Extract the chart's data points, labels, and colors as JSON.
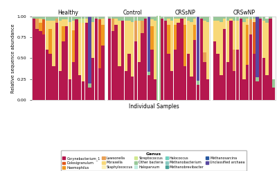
{
  "xlabel": "Individual Samples",
  "ylabel": "Relative sequence abundance",
  "groups": [
    "Healthy",
    "Control",
    "CRSsNP",
    "CRSwNP"
  ],
  "ylim": [
    0,
    1.0
  ],
  "yticks": [
    0.0,
    0.25,
    0.5,
    0.75,
    1.0
  ],
  "ytick_labels": [
    "0.00",
    "0.25",
    "0.50",
    "0.75",
    "1.00"
  ],
  "genera": [
    "Corynebacterium_1",
    "Dolosigranulum",
    "Haemophilus",
    "Lawsonella",
    "Moraxella",
    "Staphylococcus",
    "Streptococcus",
    "Other bacteria",
    "Haloparvum",
    "Halococcus",
    "Methanobacterium",
    "Methanobrevibacter",
    "Methanosarcina",
    "Unclassified archaea"
  ],
  "colors": [
    "#B5174E",
    "#E05A1E",
    "#F09820",
    "#E8A055",
    "#F8D878",
    "#FDF0B8",
    "#D0E890",
    "#98C898",
    "#C0EDE0",
    "#70D0C0",
    "#88C8C0",
    "#48A098",
    "#2858A0",
    "#5848A0"
  ],
  "background_color": "#FFFFFF",
  "panel_bg": "#FAFAF8",
  "bar_width": 0.92,
  "healthy_data": [
    [
      0.97,
      0.0,
      0.0,
      0.0,
      0.0,
      0.0,
      0.0,
      0.03,
      0.0,
      0.0,
      0.0,
      0.0,
      0.0,
      0.0
    ],
    [
      0.85,
      0.0,
      0.0,
      0.12,
      0.0,
      0.0,
      0.0,
      0.03,
      0.0,
      0.0,
      0.0,
      0.0,
      0.0,
      0.0
    ],
    [
      0.82,
      0.0,
      0.1,
      0.0,
      0.05,
      0.0,
      0.0,
      0.03,
      0.0,
      0.0,
      0.0,
      0.0,
      0.0,
      0.0
    ],
    [
      0.78,
      0.18,
      0.0,
      0.0,
      0.0,
      0.0,
      0.0,
      0.04,
      0.0,
      0.0,
      0.0,
      0.0,
      0.0,
      0.0
    ],
    [
      0.6,
      0.0,
      0.0,
      0.0,
      0.35,
      0.0,
      0.0,
      0.05,
      0.0,
      0.0,
      0.0,
      0.0,
      0.0,
      0.0
    ],
    [
      0.55,
      0.0,
      0.3,
      0.0,
      0.1,
      0.0,
      0.0,
      0.05,
      0.0,
      0.0,
      0.0,
      0.0,
      0.0,
      0.0
    ],
    [
      0.4,
      0.0,
      0.0,
      0.0,
      0.55,
      0.0,
      0.0,
      0.05,
      0.0,
      0.0,
      0.0,
      0.0,
      0.0,
      0.0
    ],
    [
      0.92,
      0.0,
      0.0,
      0.05,
      0.0,
      0.0,
      0.0,
      0.03,
      0.0,
      0.0,
      0.0,
      0.0,
      0.0,
      0.0
    ],
    [
      0.35,
      0.0,
      0.0,
      0.0,
      0.6,
      0.0,
      0.0,
      0.05,
      0.0,
      0.0,
      0.0,
      0.0,
      0.0,
      0.0
    ],
    [
      0.7,
      0.0,
      0.18,
      0.0,
      0.08,
      0.0,
      0.0,
      0.04,
      0.0,
      0.0,
      0.0,
      0.0,
      0.0,
      0.0
    ],
    [
      0.88,
      0.0,
      0.0,
      0.0,
      0.08,
      0.0,
      0.0,
      0.04,
      0.0,
      0.0,
      0.0,
      0.0,
      0.0,
      0.0
    ],
    [
      0.25,
      0.0,
      0.0,
      0.0,
      0.68,
      0.0,
      0.0,
      0.07,
      0.0,
      0.0,
      0.0,
      0.0,
      0.0,
      0.0
    ],
    [
      0.45,
      0.0,
      0.38,
      0.0,
      0.12,
      0.0,
      0.0,
      0.05,
      0.0,
      0.0,
      0.0,
      0.0,
      0.0,
      0.0
    ],
    [
      0.96,
      0.0,
      0.0,
      0.0,
      0.0,
      0.0,
      0.0,
      0.04,
      0.0,
      0.0,
      0.0,
      0.0,
      0.0,
      0.0
    ],
    [
      0.3,
      0.0,
      0.0,
      0.0,
      0.62,
      0.0,
      0.05,
      0.03,
      0.0,
      0.0,
      0.0,
      0.0,
      0.0,
      0.0
    ],
    [
      0.22,
      0.0,
      0.0,
      0.0,
      0.7,
      0.0,
      0.05,
      0.03,
      0.0,
      0.0,
      0.0,
      0.0,
      0.0,
      0.0
    ],
    [
      0.92,
      0.0,
      0.0,
      0.0,
      0.05,
      0.0,
      0.0,
      0.03,
      0.0,
      0.0,
      0.0,
      0.0,
      0.0,
      0.0
    ],
    [
      0.15,
      0.0,
      0.0,
      0.0,
      0.0,
      0.0,
      0.0,
      0.05,
      0.0,
      0.0,
      0.0,
      0.0,
      0.0,
      0.8
    ],
    [
      0.5,
      0.0,
      0.0,
      0.0,
      0.43,
      0.0,
      0.0,
      0.07,
      0.0,
      0.0,
      0.0,
      0.0,
      0.0,
      0.0
    ],
    [
      0.97,
      0.0,
      0.0,
      0.0,
      0.0,
      0.0,
      0.0,
      0.03,
      0.0,
      0.0,
      0.0,
      0.0,
      0.0,
      0.0
    ],
    [
      0.38,
      0.58,
      0.0,
      0.0,
      0.0,
      0.0,
      0.0,
      0.04,
      0.0,
      0.0,
      0.0,
      0.0,
      0.0,
      0.0
    ],
    [
      0.65,
      0.0,
      0.25,
      0.0,
      0.07,
      0.0,
      0.0,
      0.03,
      0.0,
      0.0,
      0.0,
      0.0,
      0.0,
      0.0
    ]
  ],
  "control_data": [
    [
      0.97,
      0.0,
      0.0,
      0.0,
      0.0,
      0.0,
      0.0,
      0.03,
      0.0,
      0.0,
      0.0,
      0.0,
      0.0,
      0.0
    ],
    [
      0.82,
      0.0,
      0.0,
      0.15,
      0.0,
      0.0,
      0.0,
      0.03,
      0.0,
      0.0,
      0.0,
      0.0,
      0.0,
      0.0
    ],
    [
      0.9,
      0.0,
      0.0,
      0.0,
      0.07,
      0.0,
      0.0,
      0.03,
      0.0,
      0.0,
      0.0,
      0.0,
      0.0,
      0.0
    ],
    [
      0.4,
      0.0,
      0.0,
      0.0,
      0.55,
      0.0,
      0.0,
      0.05,
      0.0,
      0.0,
      0.0,
      0.0,
      0.0,
      0.0
    ],
    [
      0.95,
      0.0,
      0.0,
      0.0,
      0.0,
      0.0,
      0.0,
      0.05,
      0.0,
      0.0,
      0.0,
      0.0,
      0.0,
      0.0
    ],
    [
      0.35,
      0.0,
      0.0,
      0.0,
      0.6,
      0.0,
      0.0,
      0.05,
      0.0,
      0.0,
      0.0,
      0.0,
      0.0,
      0.0
    ],
    [
      0.55,
      0.0,
      0.0,
      0.0,
      0.4,
      0.0,
      0.0,
      0.05,
      0.0,
      0.0,
      0.0,
      0.0,
      0.0,
      0.0
    ],
    [
      0.28,
      0.0,
      0.0,
      0.0,
      0.65,
      0.0,
      0.0,
      0.07,
      0.0,
      0.0,
      0.0,
      0.0,
      0.0,
      0.0
    ],
    [
      0.7,
      0.0,
      0.0,
      0.25,
      0.0,
      0.0,
      0.0,
      0.05,
      0.0,
      0.0,
      0.0,
      0.0,
      0.0,
      0.0
    ],
    [
      0.45,
      0.0,
      0.0,
      0.0,
      0.5,
      0.0,
      0.0,
      0.05,
      0.0,
      0.0,
      0.0,
      0.0,
      0.0,
      0.0
    ],
    [
      0.8,
      0.0,
      0.0,
      0.15,
      0.0,
      0.0,
      0.0,
      0.05,
      0.0,
      0.0,
      0.0,
      0.0,
      0.0,
      0.0
    ],
    [
      0.97,
      0.0,
      0.0,
      0.0,
      0.0,
      0.0,
      0.0,
      0.03,
      0.0,
      0.0,
      0.0,
      0.0,
      0.0,
      0.0
    ],
    [
      0.3,
      0.0,
      0.0,
      0.0,
      0.0,
      0.0,
      0.0,
      0.04,
      0.0,
      0.0,
      0.0,
      0.0,
      0.0,
      0.66
    ],
    [
      0.6,
      0.0,
      0.28,
      0.0,
      0.08,
      0.0,
      0.0,
      0.04,
      0.0,
      0.0,
      0.0,
      0.0,
      0.0,
      0.0
    ],
    [
      0.25,
      0.0,
      0.0,
      0.0,
      0.7,
      0.0,
      0.0,
      0.05,
      0.0,
      0.0,
      0.0,
      0.0,
      0.0,
      0.0
    ]
  ],
  "crssnp_data": [
    [
      0.97,
      0.0,
      0.0,
      0.0,
      0.0,
      0.0,
      0.0,
      0.03,
      0.0,
      0.0,
      0.0,
      0.0,
      0.0,
      0.0
    ],
    [
      0.95,
      0.0,
      0.0,
      0.0,
      0.0,
      0.0,
      0.0,
      0.05,
      0.0,
      0.0,
      0.0,
      0.0,
      0.0,
      0.0
    ],
    [
      0.55,
      0.0,
      0.35,
      0.0,
      0.07,
      0.0,
      0.0,
      0.03,
      0.0,
      0.0,
      0.0,
      0.0,
      0.0,
      0.0
    ],
    [
      0.35,
      0.0,
      0.0,
      0.0,
      0.6,
      0.0,
      0.0,
      0.05,
      0.0,
      0.0,
      0.0,
      0.0,
      0.0,
      0.0
    ],
    [
      0.6,
      0.0,
      0.3,
      0.0,
      0.07,
      0.0,
      0.0,
      0.03,
      0.0,
      0.0,
      0.0,
      0.0,
      0.0,
      0.0
    ],
    [
      0.92,
      0.0,
      0.0,
      0.0,
      0.05,
      0.0,
      0.0,
      0.03,
      0.0,
      0.0,
      0.0,
      0.0,
      0.0,
      0.0
    ],
    [
      0.97,
      0.0,
      0.0,
      0.0,
      0.0,
      0.0,
      0.0,
      0.03,
      0.0,
      0.0,
      0.0,
      0.0,
      0.0,
      0.0
    ],
    [
      0.4,
      0.0,
      0.5,
      0.0,
      0.07,
      0.0,
      0.0,
      0.03,
      0.0,
      0.0,
      0.0,
      0.0,
      0.0,
      0.0
    ],
    [
      0.55,
      0.0,
      0.0,
      0.0,
      0.4,
      0.0,
      0.0,
      0.05,
      0.0,
      0.0,
      0.0,
      0.0,
      0.0,
      0.0
    ],
    [
      0.28,
      0.0,
      0.0,
      0.0,
      0.65,
      0.0,
      0.0,
      0.07,
      0.0,
      0.0,
      0.0,
      0.0,
      0.0,
      0.0
    ],
    [
      0.72,
      0.0,
      0.18,
      0.0,
      0.07,
      0.0,
      0.0,
      0.03,
      0.0,
      0.0,
      0.0,
      0.0,
      0.0,
      0.0
    ],
    [
      0.18,
      0.0,
      0.0,
      0.0,
      0.0,
      0.0,
      0.0,
      0.05,
      0.0,
      0.0,
      0.0,
      0.0,
      0.0,
      0.77
    ],
    [
      0.97,
      0.0,
      0.0,
      0.0,
      0.0,
      0.0,
      0.0,
      0.03,
      0.0,
      0.0,
      0.0,
      0.0,
      0.0,
      0.0
    ],
    [
      0.45,
      0.0,
      0.0,
      0.12,
      0.38,
      0.0,
      0.0,
      0.05,
      0.0,
      0.0,
      0.0,
      0.0,
      0.0,
      0.0
    ],
    [
      0.25,
      0.0,
      0.0,
      0.0,
      0.68,
      0.0,
      0.0,
      0.07,
      0.0,
      0.0,
      0.0,
      0.0,
      0.0,
      0.0
    ]
  ],
  "crswnp_data": [
    [
      0.7,
      0.0,
      0.0,
      0.0,
      0.25,
      0.0,
      0.0,
      0.05,
      0.0,
      0.0,
      0.0,
      0.0,
      0.0,
      0.0
    ],
    [
      0.55,
      0.0,
      0.0,
      0.0,
      0.4,
      0.0,
      0.0,
      0.05,
      0.0,
      0.0,
      0.0,
      0.0,
      0.0,
      0.0
    ],
    [
      0.3,
      0.0,
      0.0,
      0.0,
      0.63,
      0.0,
      0.0,
      0.07,
      0.0,
      0.0,
      0.0,
      0.0,
      0.0,
      0.0
    ],
    [
      0.85,
      0.0,
      0.0,
      0.0,
      0.12,
      0.0,
      0.0,
      0.03,
      0.0,
      0.0,
      0.0,
      0.0,
      0.0,
      0.0
    ],
    [
      0.45,
      0.0,
      0.0,
      0.0,
      0.5,
      0.0,
      0.0,
      0.05,
      0.0,
      0.0,
      0.0,
      0.0,
      0.0,
      0.0
    ],
    [
      0.95,
      0.0,
      0.0,
      0.0,
      0.02,
      0.0,
      0.0,
      0.03,
      0.0,
      0.0,
      0.0,
      0.0,
      0.0,
      0.0
    ],
    [
      0.35,
      0.0,
      0.0,
      0.25,
      0.35,
      0.0,
      0.0,
      0.05,
      0.0,
      0.0,
      0.0,
      0.0,
      0.0,
      0.0
    ],
    [
      0.6,
      0.0,
      0.0,
      0.0,
      0.35,
      0.0,
      0.0,
      0.05,
      0.0,
      0.0,
      0.0,
      0.0,
      0.0,
      0.0
    ],
    [
      0.97,
      0.0,
      0.0,
      0.0,
      0.0,
      0.0,
      0.0,
      0.03,
      0.0,
      0.0,
      0.0,
      0.0,
      0.0,
      0.0
    ],
    [
      0.25,
      0.0,
      0.0,
      0.0,
      0.68,
      0.0,
      0.0,
      0.07,
      0.0,
      0.0,
      0.0,
      0.0,
      0.0,
      0.0
    ],
    [
      0.42,
      0.0,
      0.48,
      0.0,
      0.07,
      0.0,
      0.0,
      0.03,
      0.0,
      0.0,
      0.0,
      0.0,
      0.0,
      0.0
    ],
    [
      0.78,
      0.0,
      0.0,
      0.18,
      0.0,
      0.0,
      0.0,
      0.04,
      0.0,
      0.0,
      0.0,
      0.0,
      0.0,
      0.0
    ],
    [
      0.55,
      0.38,
      0.0,
      0.0,
      0.04,
      0.0,
      0.0,
      0.03,
      0.0,
      0.0,
      0.0,
      0.0,
      0.0,
      0.0
    ],
    [
      0.22,
      0.0,
      0.0,
      0.0,
      0.0,
      0.0,
      0.0,
      0.05,
      0.0,
      0.0,
      0.0,
      0.0,
      0.0,
      0.73
    ],
    [
      0.97,
      0.0,
      0.0,
      0.0,
      0.0,
      0.0,
      0.0,
      0.03,
      0.0,
      0.0,
      0.0,
      0.0,
      0.0,
      0.0
    ],
    [
      0.5,
      0.0,
      0.0,
      0.0,
      0.45,
      0.0,
      0.0,
      0.05,
      0.0,
      0.0,
      0.0,
      0.0,
      0.08,
      0.0
    ],
    [
      0.3,
      0.0,
      0.0,
      0.0,
      0.62,
      0.0,
      0.0,
      0.05,
      0.0,
      0.0,
      0.0,
      0.0,
      0.0,
      0.0
    ],
    [
      0.97,
      0.0,
      0.0,
      0.0,
      0.0,
      0.0,
      0.0,
      0.03,
      0.0,
      0.0,
      0.0,
      0.0,
      0.0,
      0.0
    ],
    [
      0.15,
      0.0,
      0.0,
      0.0,
      0.0,
      0.0,
      0.0,
      0.1,
      0.0,
      0.0,
      0.0,
      0.0,
      0.0,
      0.0
    ]
  ],
  "separator_color": "#A8D8A0"
}
